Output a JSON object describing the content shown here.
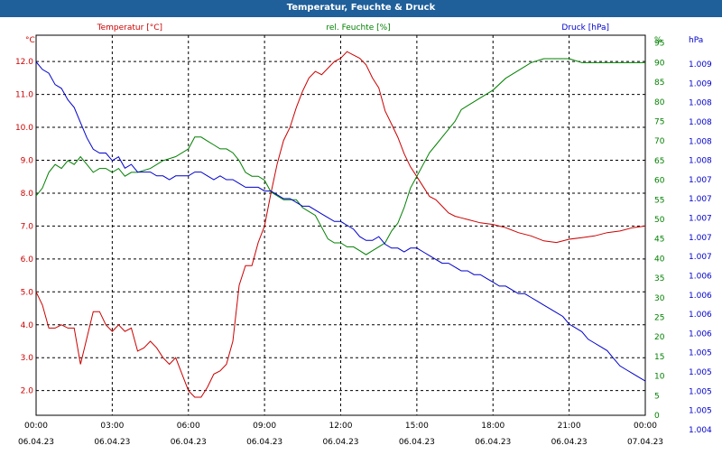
{
  "title": "Temperatur, Feuchte & Druck",
  "colors": {
    "titlebar": "#1f5f9a",
    "temperature": "#cc0000",
    "humidity": "#008000",
    "pressure": "#0000cc",
    "grid": "#000000"
  },
  "chart_data": {
    "type": "line",
    "title": "Temperatur, Feuchte & Druck",
    "grid": true,
    "x_ticks": [
      {
        "time": "00:00",
        "date": "06.04.23"
      },
      {
        "time": "03:00",
        "date": "06.04.23"
      },
      {
        "time": "06:00",
        "date": "06.04.23"
      },
      {
        "time": "09:00",
        "date": "06.04.23"
      },
      {
        "time": "12:00",
        "date": "06.04.23"
      },
      {
        "time": "15:00",
        "date": "06.04.23"
      },
      {
        "time": "18:00",
        "date": "06.04.23"
      },
      {
        "time": "21:00",
        "date": "06.04.23"
      },
      {
        "time": "00:00",
        "date": "07.04.23"
      }
    ],
    "xlim_hours": [
      0,
      24
    ],
    "axes": {
      "left": {
        "unit": "°C",
        "ylim": [
          1.25,
          12.8
        ],
        "tick_values": [
          2,
          3,
          4,
          5,
          6,
          7,
          8,
          9,
          10,
          11,
          12
        ],
        "tick_labels": [
          "2.0",
          "3.0",
          "4.0",
          "5.0",
          "6.0",
          "7.0",
          "8.0",
          "9.0",
          "10.0",
          "11.0",
          "12.0"
        ]
      },
      "right1": {
        "unit": "%",
        "ylim": [
          0,
          97
        ],
        "tick_values": [
          0,
          5,
          10,
          15,
          20,
          25,
          30,
          35,
          40,
          45,
          50,
          55,
          60,
          65,
          70,
          75,
          80,
          85,
          90,
          95
        ],
        "tick_labels": [
          "0",
          "5",
          "10",
          "15",
          "20",
          "25",
          "30",
          "35",
          "40",
          "45",
          "50",
          "55",
          "60",
          "65",
          "70",
          "75",
          "80",
          "85",
          "90",
          "95"
        ]
      },
      "right2": {
        "unit": "hPa",
        "tick_labels": [
          "1.009",
          "1.009",
          "1.008",
          "1.008",
          "1.008",
          "1.008",
          "1.007",
          "1.007",
          "1.007",
          "1.007",
          "1.007",
          "1.006",
          "1.006",
          "1.006",
          "1.006",
          "1.005",
          "1.005",
          "1.005",
          "1.005",
          "1.004"
        ]
      }
    },
    "series": [
      {
        "name": "Temperatur [°C]",
        "axis": "left",
        "x_hours": [
          0,
          0.25,
          0.5,
          0.75,
          1,
          1.25,
          1.5,
          1.75,
          2,
          2.25,
          2.5,
          2.75,
          3,
          3.25,
          3.5,
          3.75,
          4,
          4.25,
          4.5,
          4.75,
          5,
          5.25,
          5.5,
          5.75,
          6,
          6.25,
          6.5,
          6.75,
          7,
          7.25,
          7.5,
          7.75,
          8,
          8.25,
          8.5,
          8.75,
          9,
          9.25,
          9.5,
          9.75,
          10,
          10.25,
          10.5,
          10.75,
          11,
          11.25,
          11.5,
          11.75,
          12,
          12.25,
          12.5,
          12.75,
          13,
          13.25,
          13.5,
          13.75,
          14,
          14.25,
          14.5,
          14.75,
          15,
          15.25,
          15.5,
          15.75,
          16,
          16.25,
          16.5,
          16.75,
          17,
          17.5,
          18,
          18.5,
          19,
          19.5,
          20,
          20.5,
          21,
          21.5,
          22,
          22.5,
          23,
          23.5,
          24
        ],
        "values": [
          5.0,
          4.6,
          3.9,
          3.9,
          4.0,
          3.9,
          3.9,
          2.8,
          3.6,
          4.4,
          4.4,
          4.0,
          3.8,
          4.0,
          3.8,
          3.9,
          3.2,
          3.3,
          3.5,
          3.3,
          3.0,
          2.8,
          3.0,
          2.5,
          2.0,
          1.8,
          1.8,
          2.1,
          2.5,
          2.6,
          2.8,
          3.5,
          5.2,
          5.8,
          5.8,
          6.5,
          7.0,
          8.0,
          8.9,
          9.6,
          10.0,
          10.6,
          11.1,
          11.5,
          11.7,
          11.6,
          11.8,
          12.0,
          12.1,
          12.3,
          12.2,
          12.1,
          11.9,
          11.5,
          11.2,
          10.5,
          10.1,
          9.7,
          9.2,
          8.8,
          8.5,
          8.2,
          7.9,
          7.8,
          7.6,
          7.4,
          7.3,
          7.25,
          7.2,
          7.1,
          7.05,
          6.95,
          6.8,
          6.7,
          6.55,
          6.5,
          6.6,
          6.65,
          6.7,
          6.8,
          6.85,
          6.95,
          7.0
        ]
      },
      {
        "name": "rel. Feuchte [%]",
        "axis": "right1",
        "x_hours": [
          0,
          0.25,
          0.5,
          0.75,
          1,
          1.25,
          1.5,
          1.75,
          2,
          2.25,
          2.5,
          2.75,
          3,
          3.25,
          3.5,
          3.75,
          4,
          4.5,
          5,
          5.5,
          6,
          6.25,
          6.5,
          6.75,
          7,
          7.25,
          7.5,
          7.75,
          8,
          8.25,
          8.5,
          8.75,
          9,
          9.25,
          9.5,
          9.75,
          10,
          10.25,
          10.5,
          10.75,
          11,
          11.25,
          11.5,
          11.75,
          12,
          12.25,
          12.5,
          12.75,
          13,
          13.25,
          13.5,
          13.75,
          14,
          14.25,
          14.5,
          14.75,
          15,
          15.25,
          15.5,
          15.75,
          16,
          16.25,
          16.5,
          16.75,
          17,
          17.5,
          18,
          18.5,
          19,
          19.5,
          20,
          20.5,
          21,
          21.5,
          22,
          22.5,
          23,
          23.5,
          24
        ],
        "values": [
          56,
          58,
          62,
          64,
          63,
          65,
          64,
          66,
          64,
          62,
          63,
          63,
          62,
          63,
          61,
          62,
          62,
          63,
          65,
          66,
          68,
          71,
          71,
          70,
          69,
          68,
          68,
          67,
          65,
          62,
          61,
          61,
          60,
          57,
          56,
          55,
          55,
          55,
          53,
          52,
          51,
          48,
          45,
          44,
          44,
          43,
          43,
          42,
          41,
          42,
          43,
          44,
          47,
          49,
          53,
          58,
          61,
          64,
          67,
          69,
          71,
          73,
          75,
          78,
          79,
          81,
          83,
          86,
          88,
          90,
          91,
          91,
          91,
          90,
          90,
          90,
          90,
          90,
          90
        ]
      },
      {
        "name": "Druck [hPa]",
        "axis": "right2",
        "x_hours": [
          0,
          0.25,
          0.5,
          0.75,
          1,
          1.25,
          1.5,
          1.75,
          2,
          2.25,
          2.5,
          2.75,
          3,
          3.25,
          3.5,
          3.75,
          4,
          4.25,
          4.5,
          4.75,
          5,
          5.25,
          5.5,
          5.75,
          6,
          6.25,
          6.5,
          6.75,
          7,
          7.25,
          7.5,
          7.75,
          8,
          8.25,
          8.5,
          8.75,
          9,
          9.25,
          9.5,
          9.75,
          10,
          10.25,
          10.5,
          10.75,
          11,
          11.25,
          11.5,
          11.75,
          12,
          12.25,
          12.5,
          12.75,
          13,
          13.25,
          13.5,
          13.75,
          14,
          14.25,
          14.5,
          14.75,
          15,
          15.25,
          15.5,
          15.75,
          16,
          16.25,
          16.5,
          16.75,
          17,
          17.25,
          17.5,
          17.75,
          18,
          18.25,
          18.5,
          18.75,
          19,
          19.25,
          19.5,
          19.75,
          20,
          20.25,
          20.5,
          20.75,
          21,
          21.25,
          21.5,
          21.75,
          22,
          22.25,
          22.5,
          22.75,
          23,
          23.25,
          23.5,
          23.75,
          24
        ],
        "values": [
          93,
          91,
          90,
          87,
          86,
          83,
          81,
          77,
          73,
          70,
          69,
          69,
          67,
          68,
          65,
          66,
          64,
          64,
          64,
          63,
          63,
          62,
          63,
          63,
          63,
          64,
          64,
          63,
          62,
          63,
          62,
          62,
          61,
          60,
          60,
          60,
          59,
          59,
          58,
          57,
          57,
          56,
          55,
          55,
          54,
          53,
          52,
          51,
          51,
          50,
          49,
          47,
          46,
          46,
          47,
          45,
          44,
          44,
          43,
          44,
          44,
          43,
          42,
          41,
          40,
          40,
          39,
          38,
          38,
          37,
          37,
          36,
          35,
          34,
          34,
          33,
          32,
          32,
          31,
          30,
          29,
          28,
          27,
          26,
          24,
          23,
          22,
          20,
          19,
          18,
          17,
          15,
          13,
          12,
          11,
          10,
          9
        ]
      }
    ]
  }
}
